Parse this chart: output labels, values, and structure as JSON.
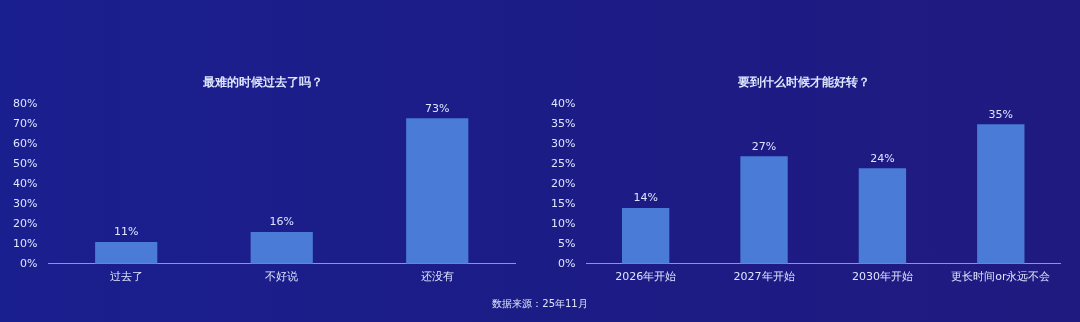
{
  "chart_data": [
    {
      "type": "bar",
      "title": "最难的时候过去了吗？",
      "categories": [
        "过去了",
        "不好说",
        "还没有"
      ],
      "values": [
        11,
        16,
        73
      ],
      "color": "#4a7bd6",
      "ylim": [
        0,
        80
      ],
      "yticks": [
        {
          "value": 0,
          "label": "0%"
        },
        {
          "value": 10,
          "label": "10%"
        },
        {
          "value": 20,
          "label": "20%"
        },
        {
          "value": 30,
          "label": "30%"
        },
        {
          "value": 40,
          "label": "40%"
        },
        {
          "value": 50,
          "label": "50%"
        },
        {
          "value": 60,
          "label": "60%"
        },
        {
          "value": 70,
          "label": "70%"
        },
        {
          "value": 80,
          "label": "80%"
        }
      ],
      "value_labels": [
        "11%",
        "16%",
        "73%"
      ],
      "grid": false,
      "legend": false
    },
    {
      "type": "bar",
      "title": "要到什么时候才能好转？",
      "categories": [
        "2026年开始",
        "2027年开始",
        "2030年开始",
        "更长时间or永远不会"
      ],
      "values": [
        14,
        27,
        24,
        35
      ],
      "color": "#4a7bd6",
      "ylim": [
        0,
        40
      ],
      "yticks": [
        {
          "value": 0,
          "label": "0%"
        },
        {
          "value": 5,
          "label": "5%"
        },
        {
          "value": 10,
          "label": "10%"
        },
        {
          "value": 15,
          "label": "15%"
        },
        {
          "value": 20,
          "label": "20%"
        },
        {
          "value": 25,
          "label": "25%"
        },
        {
          "value": 30,
          "label": "30%"
        },
        {
          "value": 35,
          "label": "35%"
        },
        {
          "value": 40,
          "label": "40%"
        }
      ],
      "value_labels": [
        "14%",
        "27%",
        "24%",
        "35%"
      ],
      "grid": false,
      "legend": false,
      "annotations": [
        "数据来源：25年11月"
      ]
    }
  ]
}
